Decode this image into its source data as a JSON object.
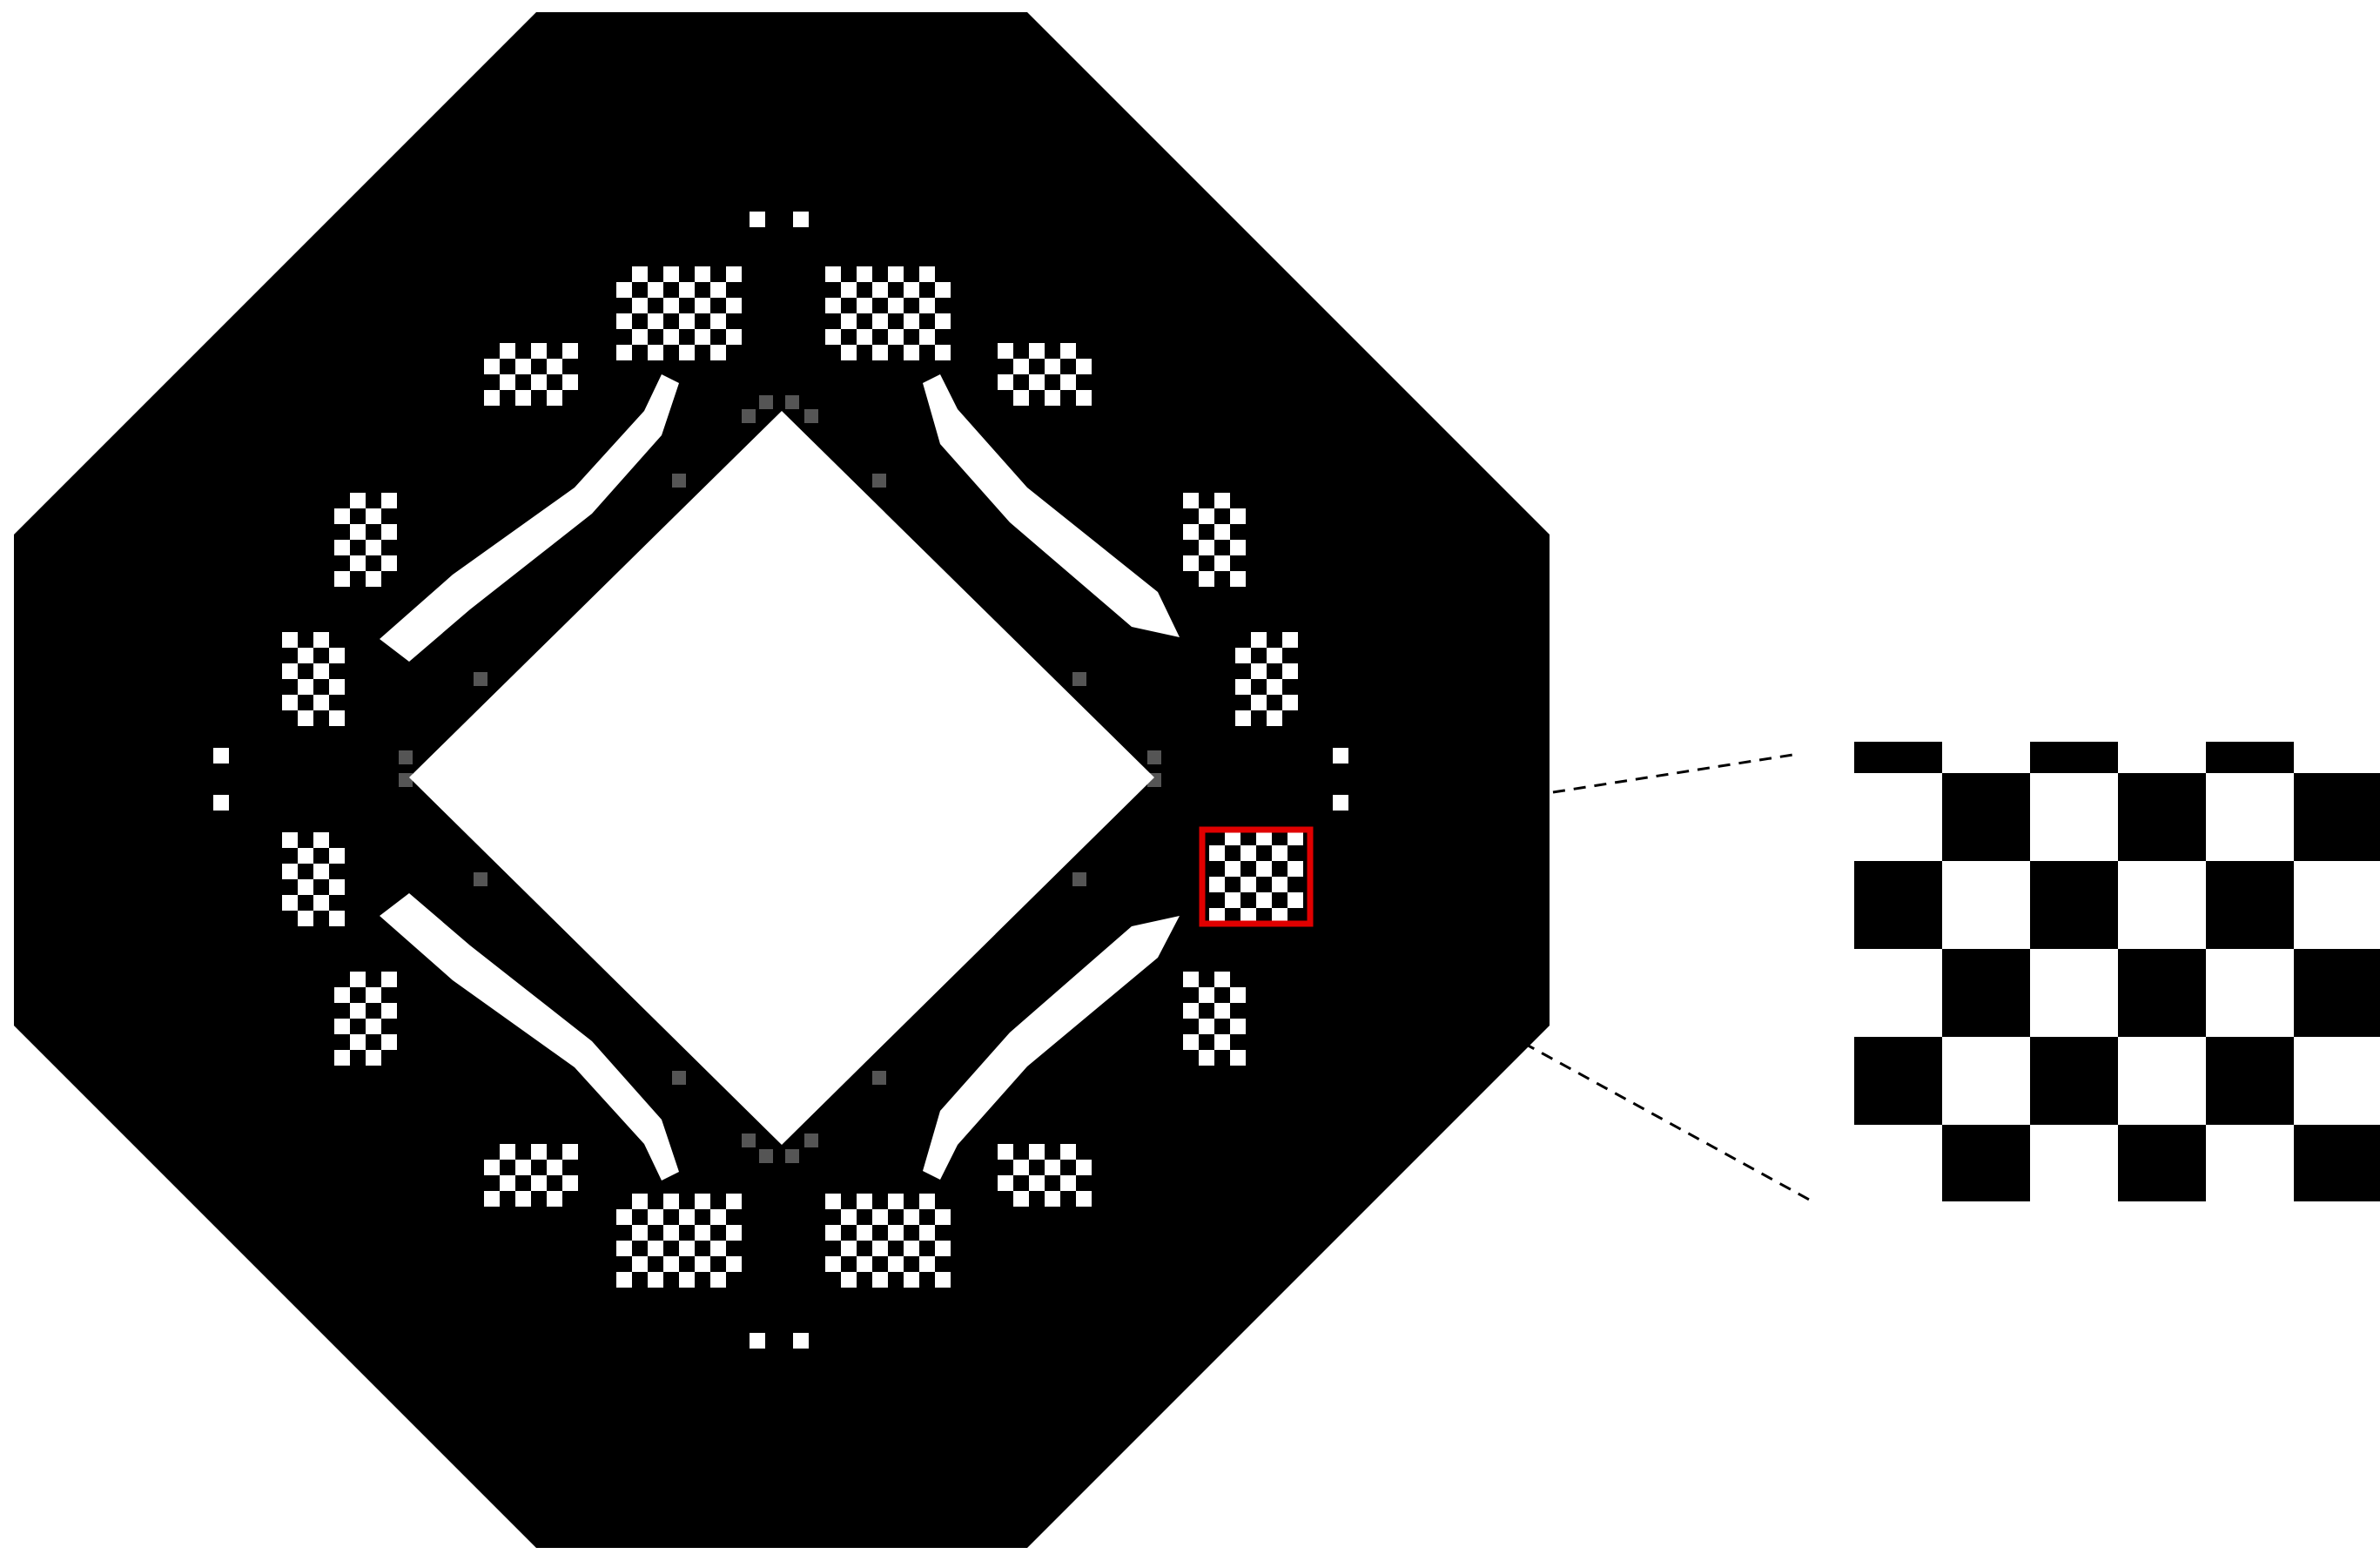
{
  "figure": {
    "subject": "topology-optimization-density-field",
    "colors": {
      "material": "#000000",
      "void": "#ffffff",
      "intermediate": "#555555",
      "highlight_box": "#e00000",
      "leader_line": "#000000"
    },
    "zoom_inset": {
      "pattern": "checkerboard",
      "rows": 5,
      "cols": 6
    }
  }
}
